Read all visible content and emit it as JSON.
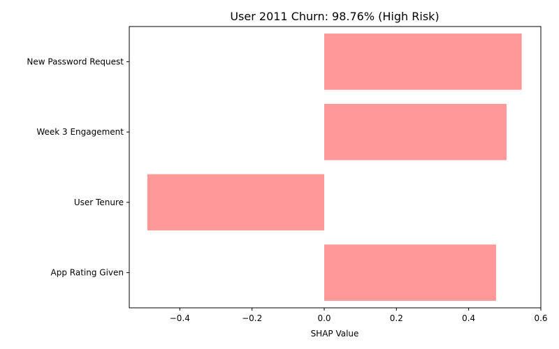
{
  "chart_data": {
    "type": "bar",
    "orientation": "horizontal",
    "title": "User 2011 Churn: 98.76% (High Risk)",
    "xlabel": "SHAP Value",
    "ylabel": "",
    "categories": [
      "New Password Request",
      "Week 3 Engagement",
      "User Tenure",
      "App Rating Given"
    ],
    "values": [
      0.547,
      0.505,
      -0.49,
      0.476
    ],
    "xlim": [
      -0.54,
      0.6
    ],
    "xticks": [
      -0.4,
      -0.2,
      0.0,
      0.2,
      0.4,
      0.6
    ],
    "xtick_labels": [
      "−0.4",
      "−0.2",
      "0.0",
      "0.2",
      "0.4",
      "0.6"
    ],
    "bar_color": "#ff9999",
    "grid": false,
    "legend": "none"
  }
}
